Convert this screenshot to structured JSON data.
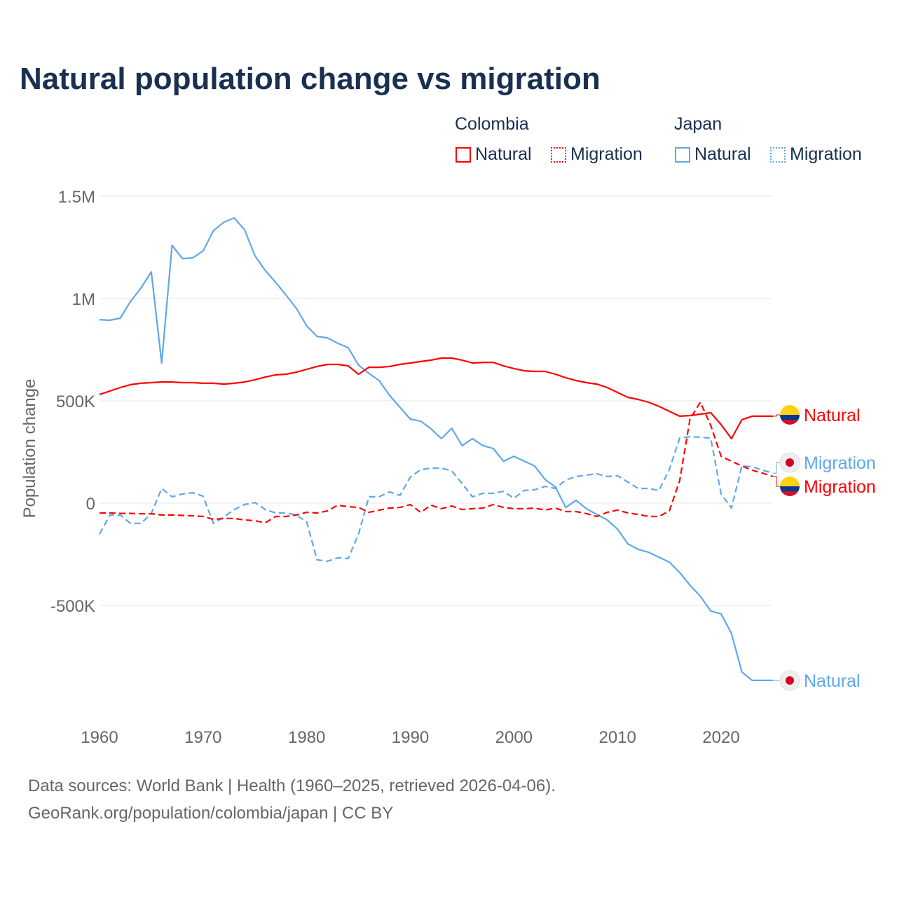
{
  "title": "Natural population change vs migration",
  "legend": {
    "groups": [
      {
        "name": "Colombia",
        "color": "#ff0000",
        "items": [
          "Natural",
          "Migration"
        ]
      },
      {
        "name": "Japan",
        "color": "#5fa8ea",
        "items": [
          "Natural",
          "Migration"
        ]
      }
    ]
  },
  "source_line1": "Data sources: World Bank | Health (1960–2025, retrieved 2026-04-06).",
  "source_line2": "GeoRank.org/population/colombia/japan | CC BY",
  "chart_data": {
    "type": "line",
    "title": "Natural population change vs migration",
    "xlabel": "",
    "ylabel": "Population change",
    "xlim": [
      1960,
      2025
    ],
    "ylim": [
      -1000000,
      1500000
    ],
    "grid": true,
    "legend_placement": "top-right",
    "x_ticks": [
      1960,
      1970,
      1980,
      1990,
      2000,
      2010,
      2020
    ],
    "x_tick_labels": [
      "1960",
      "1970",
      "1980",
      "1990",
      "2000",
      "2010",
      "2020"
    ],
    "y_ticks": [
      1500000,
      1000000,
      500000,
      0,
      -500000
    ],
    "y_tick_labels": [
      "1.5M",
      "1M",
      "500K",
      "0",
      "-500K"
    ],
    "start_year": 1960,
    "series": [
      {
        "name": "Japan Natural",
        "country": "Japan",
        "kind": "Natural",
        "color": "#5fa8ea",
        "dash": false,
        "end_label": "Natural",
        "values": [
          897,
          894,
          904,
          986,
          1051,
          1130,
          685,
          1260,
          1195,
          1199,
          1233,
          1332,
          1373,
          1394,
          1336,
          1209,
          1137,
          1079,
          1017,
          952,
          866,
          815,
          808,
          781,
          760,
          675,
          634,
          599,
          527,
          469,
          411,
          401,
          363,
          315,
          366,
          281,
          315,
          281,
          267,
          205,
          229,
          205,
          182,
          116,
          79,
          -21,
          14,
          -27,
          -55,
          -82,
          -127,
          -199,
          -226,
          -240,
          -264,
          -288,
          -339,
          -401,
          -455,
          -527,
          -541,
          -637,
          -825,
          -866,
          -866,
          -866
        ]
      },
      {
        "name": "Japan Migration",
        "country": "Japan",
        "kind": "Migration",
        "color": "#5fa8ea",
        "dash": true,
        "end_label": "Migration",
        "values": [
          -151,
          -58,
          -58,
          -99,
          -99,
          -51,
          72,
          31,
          45,
          51,
          34,
          -99,
          -68,
          -31,
          -7,
          3,
          -31,
          -48,
          -48,
          -58,
          -92,
          -277,
          -284,
          -267,
          -271,
          -151,
          31,
          31,
          55,
          38,
          127,
          164,
          171,
          171,
          158,
          96,
          31,
          48,
          48,
          58,
          24,
          62,
          65,
          82,
          72,
          113,
          130,
          137,
          144,
          130,
          134,
          103,
          72,
          72,
          62,
          164,
          318,
          325,
          322,
          318,
          45,
          -24,
          182,
          178,
          161,
          147
        ]
      },
      {
        "name": "Colombia Natural",
        "country": "Colombia",
        "kind": "Natural",
        "color": "#ff0000",
        "dash": false,
        "end_label": "Natural",
        "values": [
          531,
          548,
          565,
          579,
          586,
          589,
          592,
          592,
          589,
          589,
          586,
          586,
          582,
          586,
          592,
          603,
          616,
          627,
          630,
          640,
          654,
          668,
          678,
          678,
          671,
          630,
          664,
          664,
          668,
          678,
          685,
          692,
          699,
          709,
          709,
          699,
          685,
          688,
          688,
          671,
          658,
          647,
          644,
          644,
          630,
          613,
          599,
          589,
          582,
          565,
          541,
          517,
          507,
          493,
          473,
          449,
          425,
          428,
          435,
          442,
          384,
          315,
          408,
          425,
          425,
          425
        ]
      },
      {
        "name": "Colombia Migration",
        "country": "Colombia",
        "kind": "Migration",
        "color": "#ff0000",
        "dash": true,
        "end_label": "Migration",
        "values": [
          -48,
          -48,
          -50,
          -50,
          -52,
          -52,
          -58,
          -58,
          -60,
          -62,
          -65,
          -79,
          -75,
          -75,
          -82,
          -86,
          -96,
          -65,
          -65,
          -58,
          -45,
          -48,
          -38,
          -10,
          -17,
          -21,
          -45,
          -34,
          -24,
          -21,
          -7,
          -45,
          -10,
          -27,
          -14,
          -31,
          -27,
          -24,
          -7,
          -21,
          -27,
          -27,
          -24,
          -34,
          -24,
          -41,
          -41,
          -51,
          -65,
          -45,
          -34,
          -48,
          -55,
          -65,
          -65,
          -38,
          110,
          411,
          493,
          380,
          229,
          205,
          182,
          161,
          147,
          130
        ]
      }
    ],
    "value_unit": "thousands"
  }
}
